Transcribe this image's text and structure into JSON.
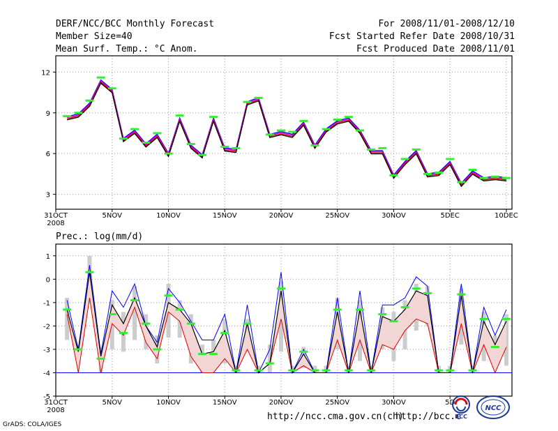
{
  "header": {
    "title": "DERF/NCC/BCC Monthly Forecast",
    "member": "Member Size=40",
    "variable": "Mean Surf. Temp.: °C Anom.",
    "period": "For 2008/11/01-2008/12/10",
    "start": "Fcst Started Refer Date 2008/10/31",
    "produced": "Fcst Produced Date 2008/11/01"
  },
  "footer": {
    "url1": "http://ncc.cma.gov.cn(ch)",
    "url2": "http://bcc.c",
    "credit": "GrADS: COLA/IGES",
    "logo_bcc": "BCC",
    "logo_ncc": "NCC"
  },
  "colors": {
    "green": "#33ee33",
    "blue": "#0000ff",
    "red": "#dd0000",
    "magenta": "#dd00dd",
    "gray": "#cccccc"
  },
  "chart_data": [
    {
      "type": "line",
      "title": "Mean Surf. Temp.: °C Anom.",
      "x": [
        1,
        2,
        3,
        4,
        5,
        6,
        7,
        8,
        9,
        10,
        11,
        12,
        13,
        14,
        15,
        16,
        17,
        18,
        19,
        20,
        21,
        22,
        23,
        24,
        25,
        26,
        27,
        28,
        29,
        30,
        31,
        32,
        33,
        34,
        35,
        36,
        37,
        38,
        39,
        40
      ],
      "xticks": [
        {
          "x": 0,
          "label": "31OCT",
          "sub": "2008"
        },
        {
          "x": 5,
          "label": "5NOV"
        },
        {
          "x": 10,
          "label": "10NOV"
        },
        {
          "x": 15,
          "label": "15NOV"
        },
        {
          "x": 20,
          "label": "20NOV"
        },
        {
          "x": 25,
          "label": "25NOV"
        },
        {
          "x": 30,
          "label": "30NOV"
        },
        {
          "x": 35,
          "label": "5DEC"
        },
        {
          "x": 40,
          "label": "10DEC"
        }
      ],
      "yticks": [
        3,
        6,
        9,
        12
      ],
      "ylim": [
        1.9,
        13.2
      ],
      "xlim": [
        0,
        40.5
      ],
      "series": [
        {
          "name": "ensemble mean",
          "values": [
            8.6,
            8.8,
            9.6,
            11.3,
            10.6,
            7.0,
            7.6,
            6.6,
            7.3,
            5.9,
            8.5,
            6.5,
            5.8,
            8.5,
            6.3,
            6.2,
            9.7,
            10.0,
            7.3,
            7.5,
            7.3,
            8.2,
            6.5,
            7.7,
            8.3,
            8.5,
            7.6,
            6.1,
            6.1,
            4.3,
            5.3,
            6.1,
            4.4,
            4.5,
            5.3,
            3.7,
            4.6,
            4.1,
            4.2,
            4.1
          ]
        },
        {
          "name": "observed",
          "values": [
            8.75,
            9.0,
            9.9,
            11.6,
            10.8,
            7.1,
            7.8,
            6.8,
            7.5,
            6.0,
            8.8,
            6.7,
            5.9,
            8.7,
            6.5,
            6.4,
            9.8,
            10.1,
            7.4,
            7.7,
            7.6,
            8.4,
            6.6,
            7.8,
            8.5,
            8.7,
            7.7,
            6.3,
            6.4,
            4.4,
            5.6,
            6.3,
            4.5,
            4.6,
            5.6,
            3.9,
            4.8,
            4.2,
            4.3,
            4.2
          ]
        }
      ]
    },
    {
      "type": "line",
      "title": "Prec.: log(mm/d)",
      "x": [
        1,
        2,
        3,
        4,
        5,
        6,
        7,
        8,
        9,
        10,
        11,
        12,
        13,
        14,
        15,
        16,
        17,
        18,
        19,
        20,
        21,
        22,
        23,
        24,
        25,
        26,
        27,
        28,
        29,
        30,
        31,
        32,
        33,
        34,
        35,
        36,
        37,
        38,
        39,
        40
      ],
      "xticks": [
        {
          "x": 0,
          "label": "31OCT",
          "sub": "2008"
        },
        {
          "x": 5,
          "label": "5NOV"
        },
        {
          "x": 10,
          "label": "10NOV"
        },
        {
          "x": 15,
          "label": "15NOV"
        },
        {
          "x": 20,
          "label": "20NOV"
        },
        {
          "x": 25,
          "label": "25NOV"
        },
        {
          "x": 30,
          "label": "30NOV"
        },
        {
          "x": 35,
          "label": "5D"
        }
      ],
      "yticks": [
        -5,
        -4,
        -3,
        -2,
        -1,
        0,
        1
      ],
      "ylim": [
        -5,
        1.5
      ],
      "xlim": [
        0,
        40.5
      ],
      "baseline": -4,
      "series": [
        {
          "name": "max",
          "values": [
            -0.9,
            -3.0,
            0.6,
            -3.2,
            -0.5,
            -1.2,
            -0.2,
            -2.0,
            -2.7,
            -0.4,
            -1.0,
            -1.8,
            -2.6,
            -2.6,
            -1.5,
            -4.0,
            -1.1,
            -4.0,
            -3.0,
            0.3,
            -4.0,
            -3.0,
            -4.0,
            -4.0,
            -0.8,
            -4.0,
            -0.5,
            -4.0,
            -1.1,
            -1.1,
            -0.8,
            0.1,
            -0.3,
            -4.0,
            -4.0,
            -0.2,
            -4.0,
            -1.2,
            -2.4,
            -1.3
          ]
        },
        {
          "name": "mean",
          "values": [
            -1.3,
            -3.1,
            0.3,
            -3.3,
            -1.1,
            -1.9,
            -0.8,
            -2.0,
            -2.9,
            -1.0,
            -1.3,
            -1.9,
            -3.2,
            -3.1,
            -2.2,
            -4.0,
            -1.9,
            -4.0,
            -3.6,
            -0.5,
            -4.0,
            -3.2,
            -4.0,
            -4.0,
            -1.4,
            -4.0,
            -1.3,
            -4.0,
            -1.6,
            -1.8,
            -1.3,
            -0.5,
            -0.7,
            -4.0,
            -4.0,
            -0.7,
            -4.0,
            -1.8,
            -2.8,
            -1.8
          ]
        },
        {
          "name": "min",
          "values": [
            -1.5,
            -4.0,
            -0.8,
            -4.0,
            -1.9,
            -2.4,
            -1.2,
            -2.7,
            -3.4,
            -1.4,
            -1.8,
            -3.3,
            -4.0,
            -4.0,
            -3.4,
            -4.0,
            -3.0,
            -4.0,
            -3.6,
            -1.7,
            -4.0,
            -3.7,
            -4.0,
            -4.0,
            -2.6,
            -4.0,
            -2.6,
            -4.0,
            -2.8,
            -3.0,
            -2.2,
            -1.7,
            -1.9,
            -4.0,
            -4.0,
            -1.9,
            -4.0,
            -2.8,
            -4.0,
            -2.9
          ]
        },
        {
          "name": "observed",
          "values": [
            -1.3,
            -3.0,
            0.3,
            -3.4,
            -1.5,
            -2.3,
            -0.9,
            -1.9,
            -3.0,
            -0.7,
            -1.3,
            -1.9,
            -3.2,
            -3.2,
            -2.3,
            -3.9,
            -1.9,
            -3.9,
            -3.6,
            -0.4,
            -3.9,
            -3.1,
            -3.9,
            -3.9,
            -1.3,
            -3.9,
            -1.3,
            -3.9,
            -1.5,
            -1.8,
            -1.2,
            -0.4,
            -0.6,
            -3.9,
            -3.9,
            -0.65,
            -3.9,
            -1.7,
            -2.9,
            -1.7
          ]
        },
        {
          "name": "spread_low",
          "values": [
            -2.6,
            -3.5,
            -1.0,
            -4.0,
            -3.0,
            -3.1,
            -2.6,
            -3.0,
            -3.6,
            -2.5,
            -2.5,
            -3.6,
            -4.0,
            -3.9,
            -3.6,
            -4.0,
            -3.1,
            -4.0,
            -4.0,
            -3.1,
            -4.0,
            -3.8,
            -4.0,
            -4.0,
            -3.0,
            -4.0,
            -3.5,
            -4.0,
            -3.0,
            -3.5,
            -3.0,
            -2.2,
            -2.0,
            -4.0,
            -4.0,
            -2.8,
            -4.0,
            -3.5,
            -3.3,
            -3.7
          ]
        },
        {
          "name": "spread_high",
          "values": [
            -0.8,
            -2.8,
            1.0,
            -2.9,
            -0.9,
            -1.4,
            -0.3,
            -1.5,
            -2.4,
            -0.2,
            -0.9,
            -1.5,
            -2.8,
            -2.6,
            -1.7,
            -3.7,
            -1.7,
            -3.7,
            -2.8,
            -0.1,
            -3.7,
            -2.9,
            -3.7,
            -3.7,
            -0.8,
            -3.7,
            -0.9,
            -3.7,
            -1.2,
            -1.4,
            -0.9,
            -0.2,
            -0.3,
            -3.7,
            -3.7,
            -0.4,
            -3.7,
            -1.4,
            -2.4,
            -1.5
          ]
        }
      ]
    }
  ]
}
